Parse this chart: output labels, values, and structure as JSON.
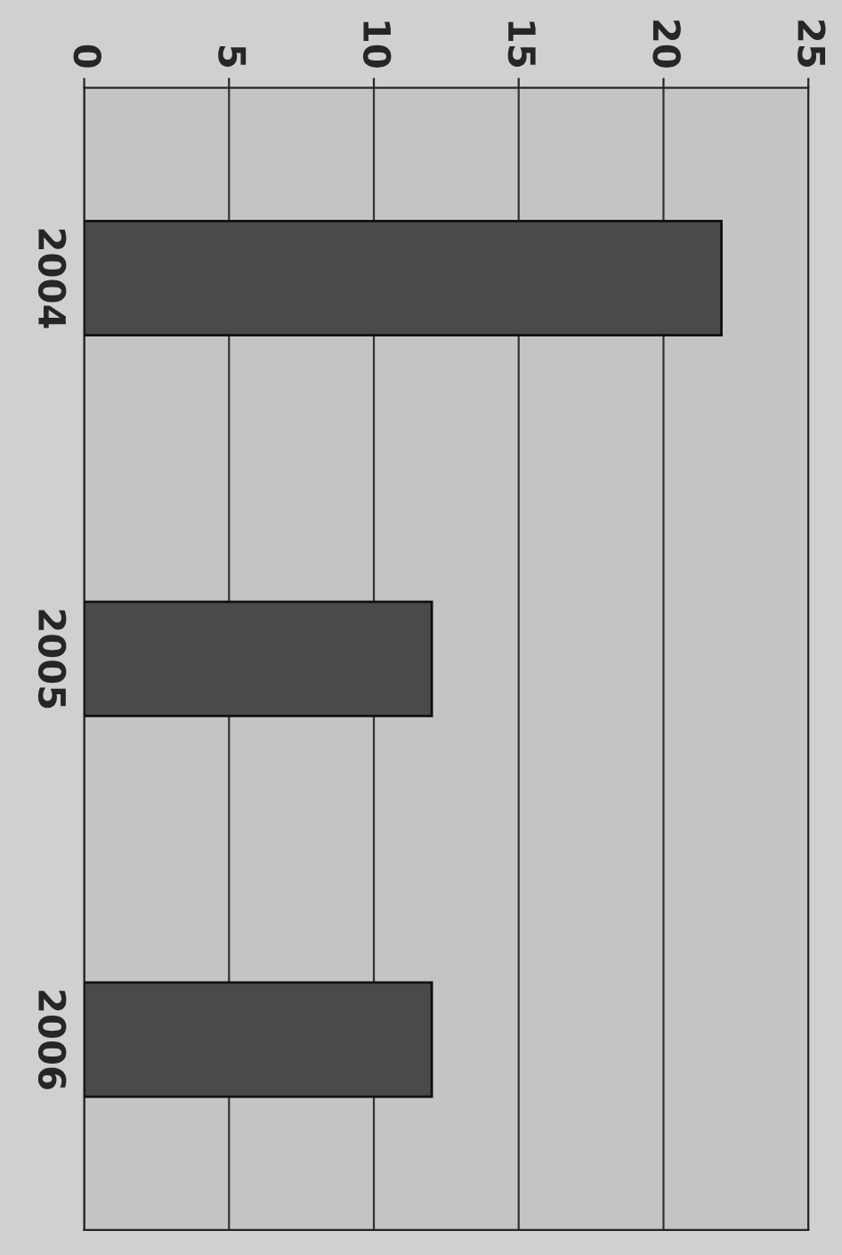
{
  "chart_data": {
    "type": "bar",
    "orientation": "horizontal",
    "categories": [
      "2004",
      "2005",
      "2006"
    ],
    "values": [
      22,
      12,
      12
    ],
    "color": "#4a4a4a",
    "xlim": [
      0,
      25
    ],
    "xticks": [
      0,
      5,
      10,
      15,
      20,
      25
    ],
    "grid": "x"
  }
}
